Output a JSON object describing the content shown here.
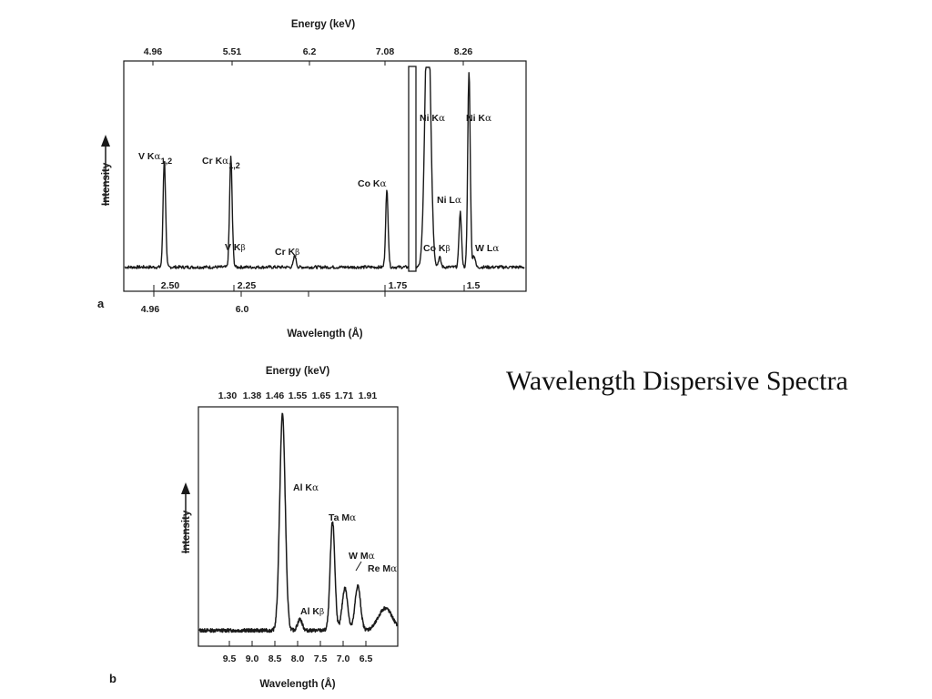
{
  "slide": {
    "title": "Wavelength Dispersive Spectra"
  },
  "colors": {
    "trace": "#1a1a1a",
    "background": "#ffffff"
  },
  "chart_data": [
    {
      "type": "line",
      "panel": "a",
      "title": "",
      "xlabel": "Wavelength (Å)",
      "x2label": "Energy (keV)",
      "ylabel": "Intensity",
      "top_ticks": [
        "4.96",
        "5.51",
        "6.2",
        "7.08",
        "8.26"
      ],
      "bottom_ticks_upper": [
        "2.50",
        "2.25",
        "1.75",
        "1.5"
      ],
      "bottom_ticks_lower": [
        "4.96",
        "6.0"
      ],
      "xlim": [
        2.63,
        1.35
      ],
      "ylim": [
        0,
        100
      ],
      "baseline": 3,
      "peaks": [
        {
          "x": 2.503,
          "height": 55,
          "width": 0.004,
          "label": "V Kα1,2"
        },
        {
          "x": 2.29,
          "height": 55,
          "width": 0.004,
          "label": "Cr Kα1,2"
        },
        {
          "x": 2.284,
          "height": 3,
          "width": 0.004,
          "label": "V Kβ"
        },
        {
          "x": 2.085,
          "height": 6,
          "width": 0.004,
          "label": "Cr Kβ"
        },
        {
          "x": 1.79,
          "height": 39,
          "width": 0.004,
          "label": "Co Kα"
        },
        {
          "x": 1.659,
          "height": 140,
          "width": 0.009,
          "label": "Ni Kα"
        },
        {
          "x": 1.621,
          "height": 5,
          "width": 0.004,
          "label": "Co Kβ"
        },
        {
          "x": 1.555,
          "height": 28,
          "width": 0.004,
          "label": "Ni Lα"
        },
        {
          "x": 1.527,
          "height": 100,
          "width": 0.004,
          "label": "Ni Kα"
        },
        {
          "x": 1.511,
          "height": 6,
          "width": 0.004,
          "label": "W Lα"
        }
      ]
    },
    {
      "type": "line",
      "panel": "b",
      "title": "",
      "xlabel": "Wavelength (Å)",
      "x2label": "Energy (keV)",
      "ylabel": "Intensity",
      "top_ticks": [
        "1.30",
        "1.38",
        "1.46",
        "1.55",
        "1.65",
        "1.71",
        "1.91"
      ],
      "bottom_ticks": [
        "9.5",
        "9.0",
        "8.5",
        "8.0",
        "7.5",
        "7.0",
        "6.5"
      ],
      "xlim": [
        10.15,
        5.85
      ],
      "ylim": [
        0,
        100
      ],
      "baseline": 3,
      "peaks": [
        {
          "x": 8.34,
          "height": 97,
          "width": 0.06,
          "label": "Al Kα"
        },
        {
          "x": 7.96,
          "height": 5,
          "width": 0.05,
          "label": "Al Kβ"
        },
        {
          "x": 7.25,
          "height": 49,
          "width": 0.05,
          "label": "Ta Mα"
        },
        {
          "x": 6.98,
          "height": 19,
          "width": 0.06,
          "label": "W Mα"
        },
        {
          "x": 6.7,
          "height": 20,
          "width": 0.06,
          "label": "Re Mα"
        },
        {
          "x": 6.1,
          "height": 10,
          "width": 0.15,
          "label": ""
        }
      ]
    }
  ]
}
